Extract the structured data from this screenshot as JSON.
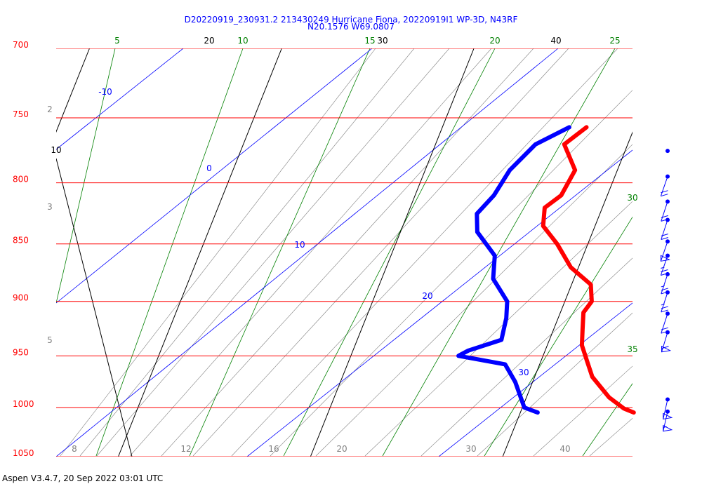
{
  "header": {
    "title_line1": "D20220919_230931.2 213430249 Hurricane Fiona, 20220919I1 WP-3D, N43RF",
    "title_line2": "N20.1576 W69.0807"
  },
  "footer": {
    "text": "Aspen V3.4.7, 20 Sep 2022  03:01 UTC"
  },
  "colors": {
    "isobar": "#ff0000",
    "isotherm": "#000000",
    "dry_adiabat": "#0000ff",
    "moist_adiabat": "#008000",
    "mixing_ratio": "#808080",
    "temperature": "#ff0000",
    "dewpoint": "#0000ff",
    "wind": "#0000ff"
  },
  "chart_data": {
    "type": "skew-t",
    "pressure_levels": [
      700,
      750,
      800,
      850,
      900,
      950,
      1000,
      1050
    ],
    "pressure_labels": [
      "700",
      "750",
      "800",
      "850",
      "900",
      "950",
      "1000",
      "1050"
    ],
    "isotherms": [
      {
        "label": "10",
        "value": 10
      },
      {
        "label": "20",
        "value": 20
      },
      {
        "label": "30",
        "value": 30
      },
      {
        "label": "40",
        "value": 40
      }
    ],
    "dry_adiabats": [
      {
        "label": "-10",
        "value": -10
      },
      {
        "label": "0",
        "value": 0
      },
      {
        "label": "10",
        "value": 10
      },
      {
        "label": "20",
        "value": 20
      },
      {
        "label": "30",
        "value": 30
      }
    ],
    "moist_adiabats": [
      {
        "label": "5",
        "value": 5
      },
      {
        "label": "10",
        "value": 10
      },
      {
        "label": "15",
        "value": 15
      },
      {
        "label": "20",
        "value": 20
      },
      {
        "label": "25",
        "value": 25
      },
      {
        "label": "30",
        "value": 30
      },
      {
        "label": "35",
        "value": 35
      }
    ],
    "mixing_ratio_labels_bottom": [
      "8",
      "12",
      "16",
      "20",
      "30",
      "40"
    ],
    "mixing_ratio_labels_left": [
      "2",
      "3",
      "5"
    ],
    "temperature_profile": [
      {
        "p": 757,
        "t": 17.5
      },
      {
        "p": 770,
        "t": 16.7
      },
      {
        "p": 790,
        "t": 17.8
      },
      {
        "p": 810,
        "t": 17.6
      },
      {
        "p": 820,
        "t": 17.0
      },
      {
        "p": 835,
        "t": 17.3
      },
      {
        "p": 850,
        "t": 18.4
      },
      {
        "p": 870,
        "t": 19.6
      },
      {
        "p": 885,
        "t": 21.0
      },
      {
        "p": 900,
        "t": 21.4
      },
      {
        "p": 910,
        "t": 21.2
      },
      {
        "p": 925,
        "t": 21.5
      },
      {
        "p": 940,
        "t": 21.8
      },
      {
        "p": 955,
        "t": 22.4
      },
      {
        "p": 970,
        "t": 23.0
      },
      {
        "p": 990,
        "t": 24.3
      },
      {
        "p": 1001,
        "t": 25.3
      },
      {
        "p": 1005,
        "t": 25.9
      }
    ],
    "dewpoint_profile": [
      {
        "p": 757,
        "td": 16.6
      },
      {
        "p": 770,
        "td": 15.2
      },
      {
        "p": 790,
        "td": 14.4
      },
      {
        "p": 810,
        "td": 14.1
      },
      {
        "p": 825,
        "td": 13.6
      },
      {
        "p": 840,
        "td": 14.0
      },
      {
        "p": 860,
        "td": 15.4
      },
      {
        "p": 880,
        "td": 15.8
      },
      {
        "p": 900,
        "td": 17.0
      },
      {
        "p": 915,
        "td": 17.3
      },
      {
        "p": 935,
        "td": 17.5
      },
      {
        "p": 945,
        "td": 16.0
      },
      {
        "p": 950,
        "td": 15.6
      },
      {
        "p": 958,
        "td": 18.2
      },
      {
        "p": 975,
        "td": 19.1
      },
      {
        "p": 1000,
        "td": 20.1
      },
      {
        "p": 1005,
        "td": 20.9
      }
    ],
    "wind_barbs": [
      {
        "p": 775,
        "dir": 90,
        "speed_kt": 0
      },
      {
        "p": 795,
        "dir": 100,
        "speed_kt": 20
      },
      {
        "p": 815,
        "dir": 110,
        "speed_kt": 20
      },
      {
        "p": 830,
        "dir": 110,
        "speed_kt": 20
      },
      {
        "p": 848,
        "dir": 100,
        "speed_kt": 50
      },
      {
        "p": 860,
        "dir": 100,
        "speed_kt": 25
      },
      {
        "p": 876,
        "dir": 110,
        "speed_kt": 25
      },
      {
        "p": 892,
        "dir": 110,
        "speed_kt": 25
      },
      {
        "p": 911,
        "dir": 110,
        "speed_kt": 20
      },
      {
        "p": 928,
        "dir": 120,
        "speed_kt": 60
      },
      {
        "p": 992,
        "dir": 140,
        "speed_kt": 50
      },
      {
        "p": 1004,
        "dir": 140,
        "speed_kt": 55
      }
    ]
  }
}
